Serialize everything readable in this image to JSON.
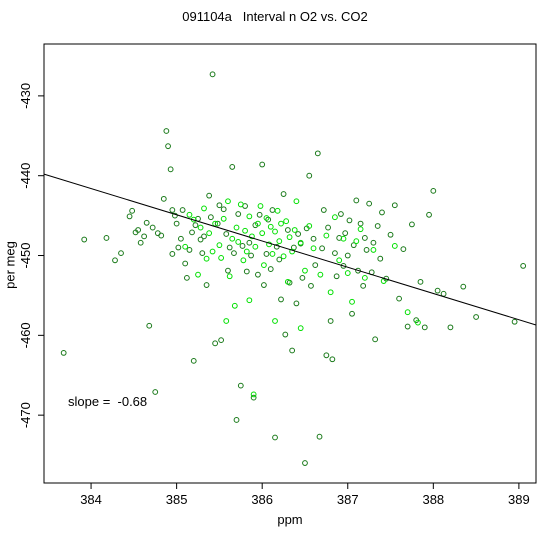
{
  "chart_data": {
    "type": "scatter",
    "title": "091104a   Interval n O2 vs. CO2",
    "xlabel": "ppm",
    "ylabel": "per meg",
    "xlim": [
      383.45,
      389.2
    ],
    "ylim": [
      -478.5,
      -423.5
    ],
    "xticks": [
      384,
      385,
      386,
      387,
      388,
      389
    ],
    "yticks": [
      -470,
      -460,
      -450,
      -440,
      -430
    ],
    "regression_line": {
      "slope": -0.68,
      "x": [
        383.45,
        389.2
      ],
      "y": [
        -439.8,
        -458.7
      ]
    },
    "annotation": "slope =  -0.68",
    "series": [
      {
        "color": "#1a7a1a",
        "points": [
          [
            383.68,
            -462.2
          ],
          [
            383.92,
            -448.0
          ],
          [
            384.18,
            -447.8
          ],
          [
            384.28,
            -450.6
          ],
          [
            384.35,
            -449.7
          ],
          [
            384.45,
            -445.1
          ],
          [
            384.48,
            -444.4
          ],
          [
            384.52,
            -447.1
          ],
          [
            384.55,
            -446.8
          ],
          [
            384.58,
            -448.4
          ],
          [
            384.62,
            -447.6
          ],
          [
            384.65,
            -445.9
          ],
          [
            384.68,
            -458.8
          ],
          [
            384.72,
            -446.5
          ],
          [
            384.75,
            -467.1
          ],
          [
            384.78,
            -447.2
          ],
          [
            384.82,
            -447.5
          ],
          [
            384.85,
            -442.9
          ],
          [
            384.88,
            -434.4
          ],
          [
            384.9,
            -436.3
          ],
          [
            384.93,
            -439.2
          ],
          [
            384.95,
            -444.3
          ],
          [
            384.98,
            -445.0
          ],
          [
            385.0,
            -446.0
          ],
          [
            385.02,
            -449.0
          ],
          [
            385.05,
            -447.9
          ],
          [
            385.07,
            -444.3
          ],
          [
            385.1,
            -451.0
          ],
          [
            385.12,
            -452.8
          ],
          [
            385.15,
            -449.3
          ],
          [
            385.18,
            -447.1
          ],
          [
            385.2,
            -463.2
          ],
          [
            385.22,
            -446.2
          ],
          [
            385.25,
            -445.4
          ],
          [
            385.28,
            -448.0
          ],
          [
            385.3,
            -449.7
          ],
          [
            385.32,
            -447.6
          ],
          [
            385.35,
            -453.7
          ],
          [
            385.38,
            -442.5
          ],
          [
            385.4,
            -445.2
          ],
          [
            385.42,
            -427.3
          ],
          [
            385.45,
            -461.0
          ],
          [
            385.48,
            -446.0
          ],
          [
            385.5,
            -443.7
          ],
          [
            385.52,
            -460.6
          ],
          [
            385.55,
            -444.2
          ],
          [
            385.58,
            -447.3
          ],
          [
            385.6,
            -451.9
          ],
          [
            385.62,
            -449.0
          ],
          [
            385.65,
            -438.9
          ],
          [
            385.67,
            -449.7
          ],
          [
            385.7,
            -470.6
          ],
          [
            385.72,
            -444.8
          ],
          [
            385.75,
            -466.3
          ],
          [
            385.77,
            -448.8
          ],
          [
            385.8,
            -443.8
          ],
          [
            385.82,
            -452.0
          ],
          [
            385.85,
            -448.4
          ],
          [
            385.87,
            -450.0
          ],
          [
            385.9,
            -467.8
          ],
          [
            385.92,
            -446.2
          ],
          [
            385.95,
            -452.4
          ],
          [
            385.97,
            -444.9
          ],
          [
            386.0,
            -438.6
          ],
          [
            386.02,
            -453.7
          ],
          [
            386.05,
            -449.8
          ],
          [
            386.07,
            -445.5
          ],
          [
            386.1,
            -451.7
          ],
          [
            386.12,
            -444.3
          ],
          [
            386.15,
            -472.8
          ],
          [
            386.17,
            -448.9
          ],
          [
            386.2,
            -450.5
          ],
          [
            386.22,
            -455.5
          ],
          [
            386.25,
            -442.3
          ],
          [
            386.27,
            -459.9
          ],
          [
            386.3,
            -446.8
          ],
          [
            386.32,
            -453.4
          ],
          [
            386.35,
            -461.9
          ],
          [
            386.37,
            -449.0
          ],
          [
            386.4,
            -456.0
          ],
          [
            386.42,
            -447.3
          ],
          [
            386.45,
            -448.5
          ],
          [
            386.47,
            -452.8
          ],
          [
            386.5,
            -476.0
          ],
          [
            386.52,
            -446.6
          ],
          [
            386.55,
            -440.0
          ],
          [
            386.57,
            -453.8
          ],
          [
            386.6,
            -447.9
          ],
          [
            386.62,
            -451.2
          ],
          [
            386.65,
            -437.2
          ],
          [
            386.67,
            -472.7
          ],
          [
            386.7,
            -449.1
          ],
          [
            386.72,
            -444.3
          ],
          [
            386.75,
            -462.5
          ],
          [
            386.77,
            -446.5
          ],
          [
            386.8,
            -458.2
          ],
          [
            386.82,
            -463.0
          ],
          [
            386.85,
            -449.7
          ],
          [
            386.87,
            -452.6
          ],
          [
            386.9,
            -447.8
          ],
          [
            386.92,
            -444.8
          ],
          [
            386.95,
            -451.3
          ],
          [
            386.97,
            -447.2
          ],
          [
            387.0,
            -450.0
          ],
          [
            387.02,
            -445.6
          ],
          [
            387.05,
            -457.3
          ],
          [
            387.07,
            -448.7
          ],
          [
            387.1,
            -443.1
          ],
          [
            387.12,
            -451.9
          ],
          [
            387.15,
            -446.0
          ],
          [
            387.18,
            -453.8
          ],
          [
            387.2,
            -447.8
          ],
          [
            387.22,
            -449.3
          ],
          [
            387.25,
            -443.5
          ],
          [
            387.28,
            -452.1
          ],
          [
            387.3,
            -448.4
          ],
          [
            387.32,
            -460.5
          ],
          [
            387.35,
            -446.3
          ],
          [
            387.38,
            -450.4
          ],
          [
            387.4,
            -444.6
          ],
          [
            387.45,
            -452.9
          ],
          [
            387.5,
            -447.4
          ],
          [
            387.55,
            -443.7
          ],
          [
            387.6,
            -455.4
          ],
          [
            387.65,
            -449.2
          ],
          [
            387.7,
            -458.9
          ],
          [
            387.75,
            -446.1
          ],
          [
            387.8,
            -458.1
          ],
          [
            387.85,
            -453.3
          ],
          [
            387.9,
            -459.0
          ],
          [
            387.95,
            -444.9
          ],
          [
            388.0,
            -441.9
          ],
          [
            388.05,
            -454.4
          ],
          [
            388.12,
            -454.8
          ],
          [
            388.2,
            -459.0
          ],
          [
            388.35,
            -453.9
          ],
          [
            388.5,
            -457.7
          ],
          [
            388.95,
            -458.3
          ],
          [
            389.05,
            -451.3
          ],
          [
            384.95,
            -449.8
          ]
        ]
      },
      {
        "color": "#00e000",
        "points": [
          [
            385.15,
            -444.9
          ],
          [
            385.2,
            -445.5
          ],
          [
            385.28,
            -446.5
          ],
          [
            385.32,
            -444.1
          ],
          [
            385.38,
            -447.2
          ],
          [
            385.42,
            -449.5
          ],
          [
            385.45,
            -446.0
          ],
          [
            385.5,
            -448.7
          ],
          [
            385.52,
            -450.3
          ],
          [
            385.55,
            -445.4
          ],
          [
            385.6,
            -443.2
          ],
          [
            385.62,
            -452.6
          ],
          [
            385.65,
            -447.9
          ],
          [
            385.68,
            -456.3
          ],
          [
            385.7,
            -446.5
          ],
          [
            385.72,
            -448.3
          ],
          [
            385.75,
            -443.6
          ],
          [
            385.78,
            -450.6
          ],
          [
            385.8,
            -446.9
          ],
          [
            385.82,
            -449.5
          ],
          [
            385.85,
            -445.1
          ],
          [
            385.88,
            -447.6
          ],
          [
            385.9,
            -467.4
          ],
          [
            385.92,
            -448.9
          ],
          [
            385.95,
            -446.0
          ],
          [
            385.98,
            -443.8
          ],
          [
            386.0,
            -447.2
          ],
          [
            386.02,
            -451.2
          ],
          [
            386.05,
            -445.3
          ],
          [
            386.08,
            -448.6
          ],
          [
            386.1,
            -446.4
          ],
          [
            386.12,
            -449.8
          ],
          [
            386.15,
            -447.0
          ],
          [
            386.18,
            -444.4
          ],
          [
            386.2,
            -448.2
          ],
          [
            386.22,
            -446.0
          ],
          [
            386.25,
            -450.1
          ],
          [
            386.28,
            -445.7
          ],
          [
            386.3,
            -453.3
          ],
          [
            386.32,
            -447.7
          ],
          [
            386.35,
            -449.5
          ],
          [
            386.38,
            -446.8
          ],
          [
            386.4,
            -443.2
          ],
          [
            386.45,
            -448.4
          ],
          [
            386.5,
            -451.9
          ],
          [
            386.55,
            -446.3
          ],
          [
            386.6,
            -449.1
          ],
          [
            386.68,
            -452.4
          ],
          [
            386.75,
            -447.5
          ],
          [
            386.8,
            -454.6
          ],
          [
            386.85,
            -445.2
          ],
          [
            386.9,
            -450.6
          ],
          [
            386.95,
            -447.9
          ],
          [
            387.0,
            -452.2
          ],
          [
            387.05,
            -455.8
          ],
          [
            387.1,
            -448.2
          ],
          [
            387.15,
            -446.7
          ],
          [
            387.2,
            -452.8
          ],
          [
            387.3,
            -449.3
          ],
          [
            387.42,
            -453.2
          ],
          [
            387.55,
            -448.8
          ],
          [
            387.7,
            -457.1
          ],
          [
            387.82,
            -458.4
          ],
          [
            385.1,
            -448.9
          ],
          [
            385.25,
            -452.4
          ],
          [
            385.35,
            -450.4
          ],
          [
            385.58,
            -458.2
          ],
          [
            385.85,
            -455.6
          ],
          [
            386.15,
            -458.2
          ],
          [
            386.45,
            -459.1
          ]
        ]
      }
    ]
  }
}
